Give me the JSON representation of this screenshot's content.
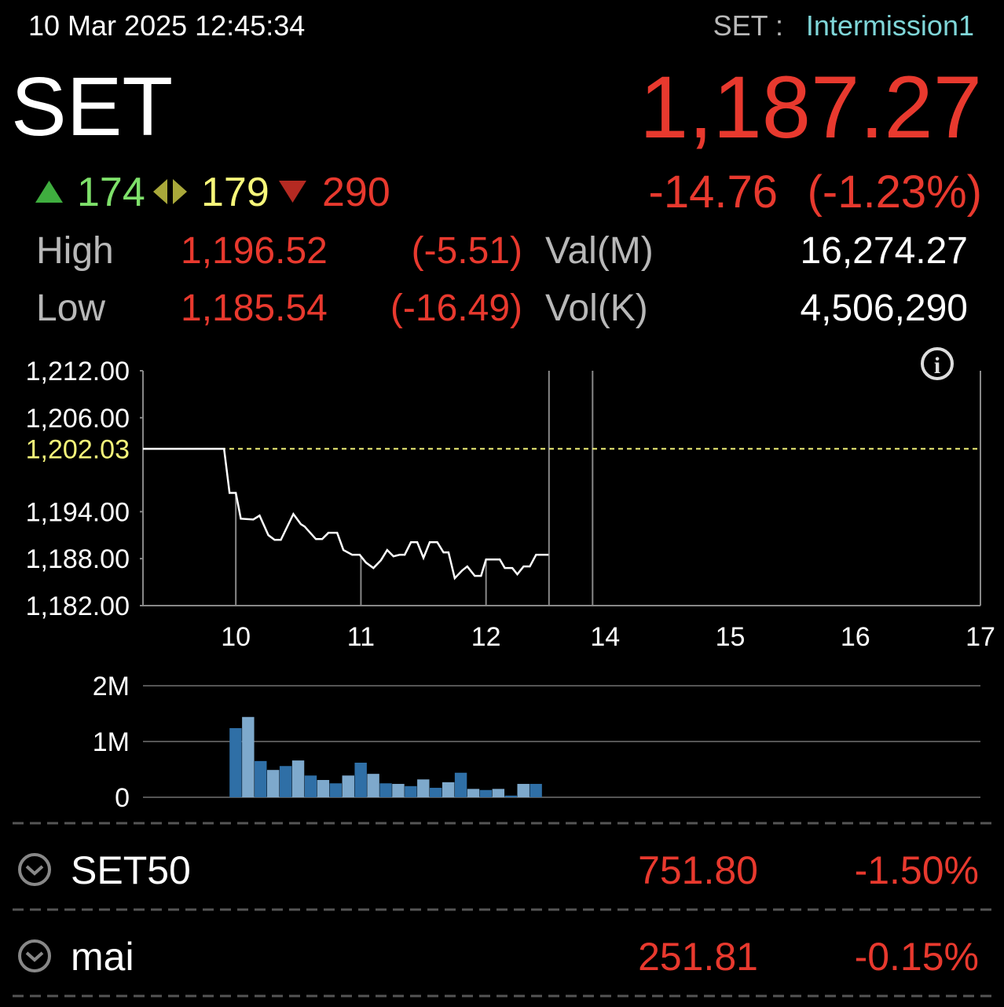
{
  "header": {
    "datetime": "10 Mar 2025 12:45:34",
    "market": "SET :",
    "status": "Intermission1",
    "index_name": "SET",
    "last": "1,187.27",
    "advances": "174",
    "unchanged": "179",
    "declines": "290",
    "change": "-14.76",
    "change_pct": "(-1.23%)"
  },
  "stats": {
    "rows": [
      [
        "High",
        "1,196.52",
        "(-5.51)",
        "Val(M)",
        "16,274.27"
      ],
      [
        "Low",
        "1,185.54",
        "(-16.49)",
        "Vol(K)",
        "4,506,290"
      ]
    ]
  },
  "chart_data": [
    {
      "type": "line",
      "color": "#ffffff",
      "xlim": [
        9.258,
        17
      ],
      "x_break": [
        12.5,
        13.9
      ],
      "xticks": [
        10,
        11,
        12,
        14,
        15,
        16,
        17
      ],
      "ylim": [
        1182,
        1212
      ],
      "grid": true,
      "yticks": [
        {
          "value": 1212,
          "label": "1,212.00"
        },
        {
          "value": 1206,
          "label": "1,206.00"
        },
        {
          "value": 1194,
          "label": "1,194.00"
        },
        {
          "value": 1188,
          "label": "1,188.00"
        },
        {
          "value": 1182,
          "label": "1,182.00"
        }
      ],
      "reference": {
        "value": 1202.03,
        "label": "1,202.03",
        "color": "#f5f57a"
      },
      "x": [
        9.258,
        9.906,
        9.95,
        10.0,
        10.04,
        10.14,
        10.19,
        10.26,
        10.31,
        10.36,
        10.46,
        10.52,
        10.55,
        10.64,
        10.69,
        10.74,
        10.81,
        10.86,
        10.93,
        10.99,
        11.04,
        11.1,
        11.16,
        11.21,
        11.26,
        11.31,
        11.35,
        11.4,
        11.45,
        11.5,
        11.55,
        11.61,
        11.66,
        11.7,
        11.75,
        11.81,
        11.85,
        11.91,
        11.96,
        12.0,
        12.11,
        12.15,
        12.21,
        12.25,
        12.3,
        12.35,
        12.4,
        12.5
      ],
      "values": [
        1202.03,
        1202.03,
        1196.4,
        1196.4,
        1193.1,
        1193.0,
        1193.5,
        1191.0,
        1190.4,
        1190.4,
        1193.7,
        1192.4,
        1192.1,
        1190.5,
        1190.5,
        1191.3,
        1191.3,
        1189.1,
        1188.5,
        1188.5,
        1187.5,
        1186.8,
        1187.8,
        1189.1,
        1188.3,
        1188.5,
        1188.5,
        1190.1,
        1190.1,
        1188.1,
        1190.1,
        1190.1,
        1188.8,
        1188.8,
        1185.5,
        1186.5,
        1187.0,
        1185.8,
        1185.8,
        1187.9,
        1187.9,
        1186.8,
        1186.8,
        1186.0,
        1187.0,
        1187.0,
        1188.5,
        1188.5
      ]
    },
    {
      "type": "bar",
      "xlim": [
        9.258,
        17
      ],
      "x_break": [
        12.5,
        13.9
      ],
      "ylim": [
        0,
        2000000
      ],
      "grid": true,
      "yticks": [
        {
          "value": 2000000,
          "label": "2M"
        },
        {
          "value": 1000000,
          "label": "1M"
        },
        0
      ],
      "x": [
        10.0,
        10.1,
        10.2,
        10.3,
        10.4,
        10.5,
        10.6,
        10.7,
        10.8,
        10.9,
        11.0,
        11.1,
        11.2,
        11.3,
        11.4,
        11.5,
        11.6,
        11.7,
        11.8,
        11.9,
        12.0,
        12.1,
        12.2,
        12.3,
        12.4
      ],
      "values": [
        1240000,
        1440000,
        650000,
        490000,
        560000,
        660000,
        390000,
        310000,
        250000,
        390000,
        620000,
        420000,
        250000,
        240000,
        200000,
        320000,
        170000,
        270000,
        440000,
        150000,
        130000,
        150000,
        30000,
        240000,
        240000
      ],
      "colors": [
        "#2f6fa6",
        "#7ea9cc",
        "#2f6fa6",
        "#7ea9cc",
        "#2f6fa6",
        "#7ea9cc",
        "#2f6fa6",
        "#7ea9cc",
        "#2f6fa6",
        "#7ea9cc",
        "#2f6fa6",
        "#7ea9cc",
        "#2f6fa6",
        "#7ea9cc",
        "#2f6fa6",
        "#7ea9cc",
        "#2f6fa6",
        "#7ea9cc",
        "#2f6fa6",
        "#7ea9cc",
        "#2f6fa6",
        "#7ea9cc",
        "#2f6fa6",
        "#7ea9cc",
        "#2f6fa6"
      ]
    }
  ],
  "indices": [
    {
      "name": "SET50",
      "value": "751.80",
      "change": "-1.50%"
    },
    {
      "name": "mai",
      "value": "251.81",
      "change": "-0.15%"
    }
  ]
}
